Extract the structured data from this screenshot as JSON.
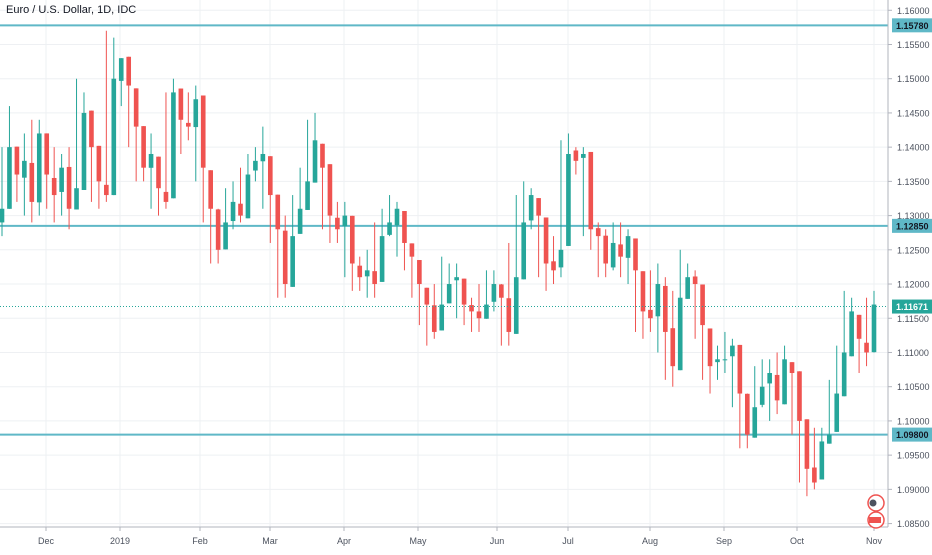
{
  "chart_data": {
    "type": "candlestick",
    "title": "Euro / U.S. Dollar, 1D, IDC",
    "colors": {
      "up": "#26a69a",
      "down": "#ef5350",
      "level_line": "#5fb8c7",
      "current_price_line": "#26a69a",
      "grid": "#eef0f3",
      "axis_text": "#4c525e"
    },
    "x_ticks": [
      "Dec",
      "2019",
      "Feb",
      "Mar",
      "Apr",
      "May",
      "Jun",
      "Jul",
      "Aug",
      "Sep",
      "Oct",
      "Nov"
    ],
    "y_ticks": [
      "1.16000",
      "1.15500",
      "1.15000",
      "1.14500",
      "1.14000",
      "1.13500",
      "1.13000",
      "1.12500",
      "1.12000",
      "1.11500",
      "1.11000",
      "1.10500",
      "1.10000",
      "1.09500",
      "1.09000",
      "1.08500"
    ],
    "ylim": [
      1.0845,
      1.1615
    ],
    "level_lines": [
      {
        "value": 1.1578,
        "label": "1.15780"
      },
      {
        "value": 1.1285,
        "label": "1.12850"
      },
      {
        "value": 1.098,
        "label": "1.09800"
      }
    ],
    "current_price": {
      "value": 1.11671,
      "label": "1.11671"
    },
    "path_close": [
      1.131,
      1.14,
      1.136,
      1.138,
      1.132,
      1.142,
      1.136,
      1.133,
      1.137,
      1.131,
      1.134,
      1.145,
      1.14,
      1.135,
      1.133,
      1.15,
      1.153,
      1.149,
      1.143,
      1.137,
      1.139,
      1.134,
      1.132,
      1.148,
      1.144,
      1.143,
      1.147,
      1.137,
      1.131,
      1.125,
      1.129,
      1.132,
      1.13,
      1.136,
      1.138,
      1.139,
      1.133,
      1.128,
      1.12,
      1.127,
      1.131,
      1.135,
      1.141,
      1.137,
      1.13,
      1.128,
      1.13,
      1.123,
      1.121,
      1.122,
      1.12,
      1.127,
      1.129,
      1.131,
      1.126,
      1.124,
      1.12,
      1.117,
      1.113,
      1.117,
      1.12,
      1.121,
      1.117,
      1.116,
      1.115,
      1.117,
      1.12,
      1.118,
      1.113,
      1.121,
      1.129,
      1.133,
      1.13,
      1.123,
      1.122,
      1.125,
      1.139,
      1.138,
      1.139,
      1.128,
      1.127,
      1.123,
      1.126,
      1.124,
      1.127,
      1.122,
      1.116,
      1.115,
      1.12,
      1.113,
      1.108,
      1.118,
      1.121,
      1.12,
      1.114,
      1.108,
      1.109,
      1.109,
      1.111,
      1.104,
      1.098,
      1.102,
      1.105,
      1.107,
      1.103,
      1.109,
      1.107,
      1.1,
      1.093,
      1.091,
      1.097,
      1.098,
      1.104,
      1.11,
      1.116,
      1.112,
      1.11,
      1.117
    ],
    "path_high": [
      1.14,
      1.146,
      1.139,
      1.142,
      1.144,
      1.144,
      1.14,
      1.14,
      1.139,
      1.14,
      1.15,
      1.148,
      1.142,
      1.139,
      1.157,
      1.156,
      1.153,
      1.15,
      1.145,
      1.141,
      1.142,
      1.137,
      1.148,
      1.15,
      1.147,
      1.148,
      1.149,
      1.14,
      1.133,
      1.131,
      1.134,
      1.135,
      1.137,
      1.139,
      1.14,
      1.143,
      1.135,
      1.131,
      1.13,
      1.133,
      1.137,
      1.144,
      1.145,
      1.138,
      1.133,
      1.132,
      1.132,
      1.125,
      1.124,
      1.125,
      1.129,
      1.131,
      1.133,
      1.132,
      1.129,
      1.125,
      1.122,
      1.119,
      1.12,
      1.124,
      1.123,
      1.123,
      1.119,
      1.118,
      1.12,
      1.122,
      1.122,
      1.12,
      1.126,
      1.133,
      1.135,
      1.134,
      1.131,
      1.126,
      1.127,
      1.141,
      1.142,
      1.14,
      1.14,
      1.13,
      1.129,
      1.128,
      1.129,
      1.129,
      1.128,
      1.124,
      1.118,
      1.122,
      1.123,
      1.121,
      1.119,
      1.125,
      1.123,
      1.122,
      1.116,
      1.111,
      1.111,
      1.113,
      1.112,
      1.107,
      1.104,
      1.108,
      1.109,
      1.109,
      1.11,
      1.111,
      1.108,
      1.101,
      1.095,
      1.099,
      1.099,
      1.106,
      1.111,
      1.119,
      1.118,
      1.115,
      1.118,
      1.119
    ],
    "path_low": [
      1.127,
      1.131,
      1.132,
      1.13,
      1.129,
      1.13,
      1.131,
      1.129,
      1.13,
      1.128,
      1.131,
      1.134,
      1.132,
      1.131,
      1.132,
      1.147,
      1.146,
      1.14,
      1.135,
      1.135,
      1.131,
      1.13,
      1.131,
      1.141,
      1.139,
      1.141,
      1.135,
      1.129,
      1.123,
      1.123,
      1.126,
      1.128,
      1.129,
      1.133,
      1.135,
      1.131,
      1.126,
      1.118,
      1.118,
      1.125,
      1.128,
      1.132,
      1.135,
      1.128,
      1.126,
      1.126,
      1.121,
      1.119,
      1.119,
      1.118,
      1.118,
      1.125,
      1.127,
      1.124,
      1.122,
      1.118,
      1.114,
      1.111,
      1.112,
      1.115,
      1.118,
      1.115,
      1.114,
      1.113,
      1.113,
      1.115,
      1.116,
      1.111,
      1.111,
      1.118,
      1.127,
      1.128,
      1.121,
      1.119,
      1.12,
      1.121,
      1.136,
      1.136,
      1.127,
      1.125,
      1.121,
      1.121,
      1.122,
      1.121,
      1.12,
      1.113,
      1.112,
      1.113,
      1.11,
      1.106,
      1.105,
      1.116,
      1.118,
      1.112,
      1.106,
      1.104,
      1.106,
      1.107,
      1.102,
      1.096,
      1.096,
      1.099,
      1.102,
      1.1,
      1.101,
      1.105,
      1.098,
      1.091,
      1.089,
      1.09,
      1.095,
      1.097,
      1.102,
      1.108,
      1.11,
      1.107,
      1.108,
      1.11
    ]
  }
}
